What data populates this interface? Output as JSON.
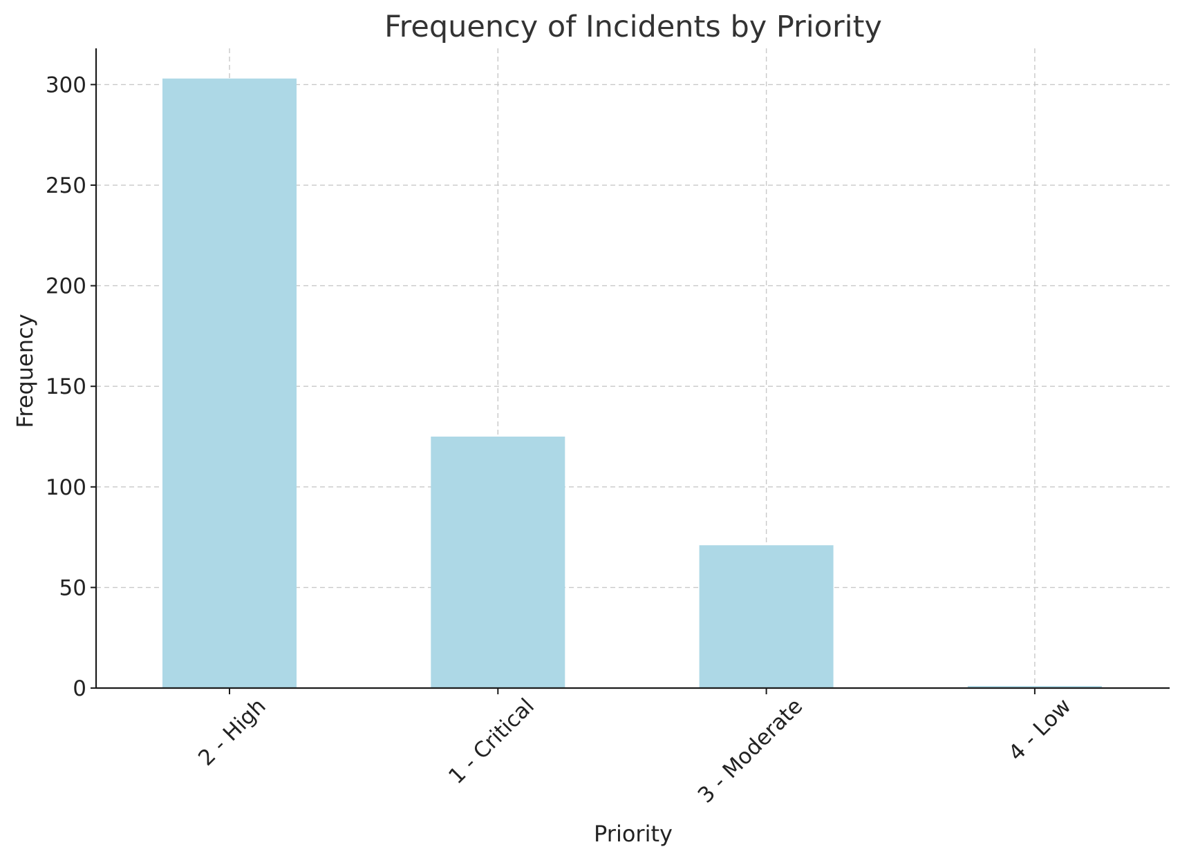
{
  "chart_data": {
    "type": "bar",
    "title": "Frequency of Incidents by Priority",
    "xlabel": "Priority",
    "ylabel": "Frequency",
    "categories": [
      "2 - High",
      "1 - Critical",
      "3 - Moderate",
      "4 - Low"
    ],
    "values": [
      303,
      125,
      71,
      1
    ],
    "ylim": [
      0,
      318
    ],
    "yticks": [
      0,
      50,
      100,
      150,
      200,
      250,
      300
    ],
    "ytick_labels": [
      "0",
      "50",
      "100",
      "150",
      "200",
      "250",
      "300"
    ],
    "grid": true,
    "legend": "none",
    "bar_color": "#add8e6"
  }
}
